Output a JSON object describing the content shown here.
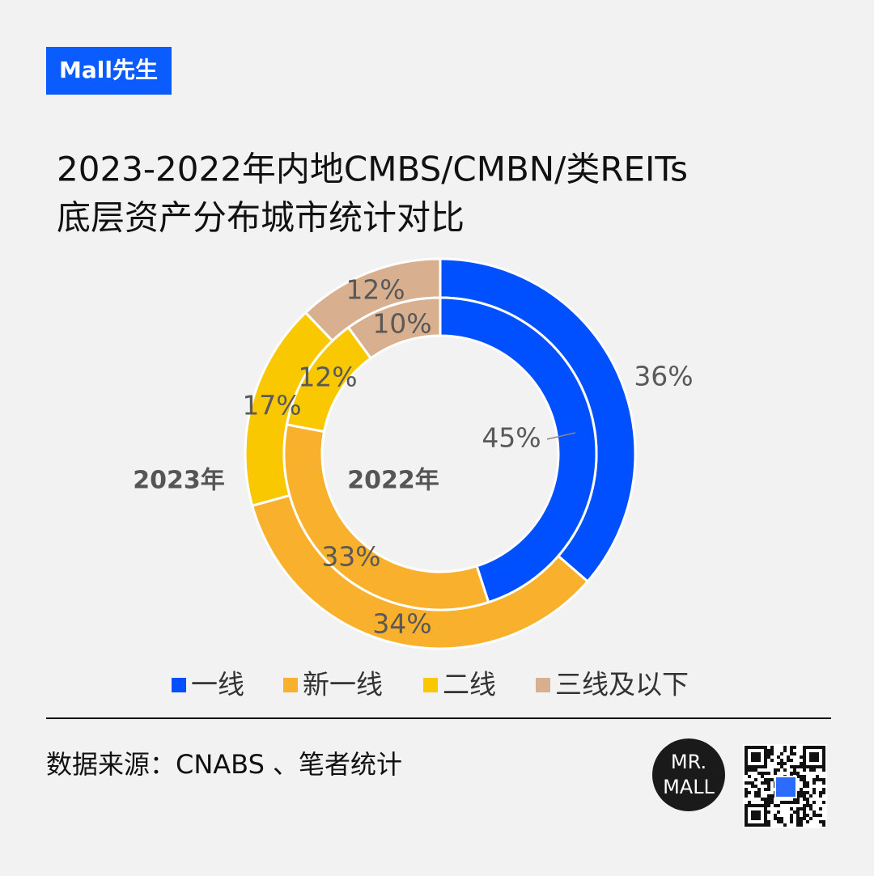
{
  "brand": "Mall先生",
  "chart_data": {
    "type": "nested-donut",
    "title": [
      "2023-2022年内地CMBS/CMBN/类REITs",
      "底层资产分布城市统计对比"
    ],
    "categories": [
      "一线",
      "新一线",
      "二线",
      "三线及以下"
    ],
    "colors": [
      "#0050ff",
      "#f9b02c",
      "#fac800",
      "#d9b08f"
    ],
    "series": [
      {
        "name": "2023年",
        "values": [
          36,
          34,
          17,
          12
        ],
        "value_labels": [
          "36%",
          "34%",
          "17%",
          "12%"
        ]
      },
      {
        "name": "2022年",
        "values": [
          45,
          33,
          12,
          10
        ],
        "value_labels": [
          "45%",
          "33%",
          "12%",
          "10%"
        ]
      }
    ],
    "legend": "bottom"
  },
  "source": "数据来源：CNABS 、笔者统计",
  "logo": [
    "MR.",
    "MALL"
  ]
}
